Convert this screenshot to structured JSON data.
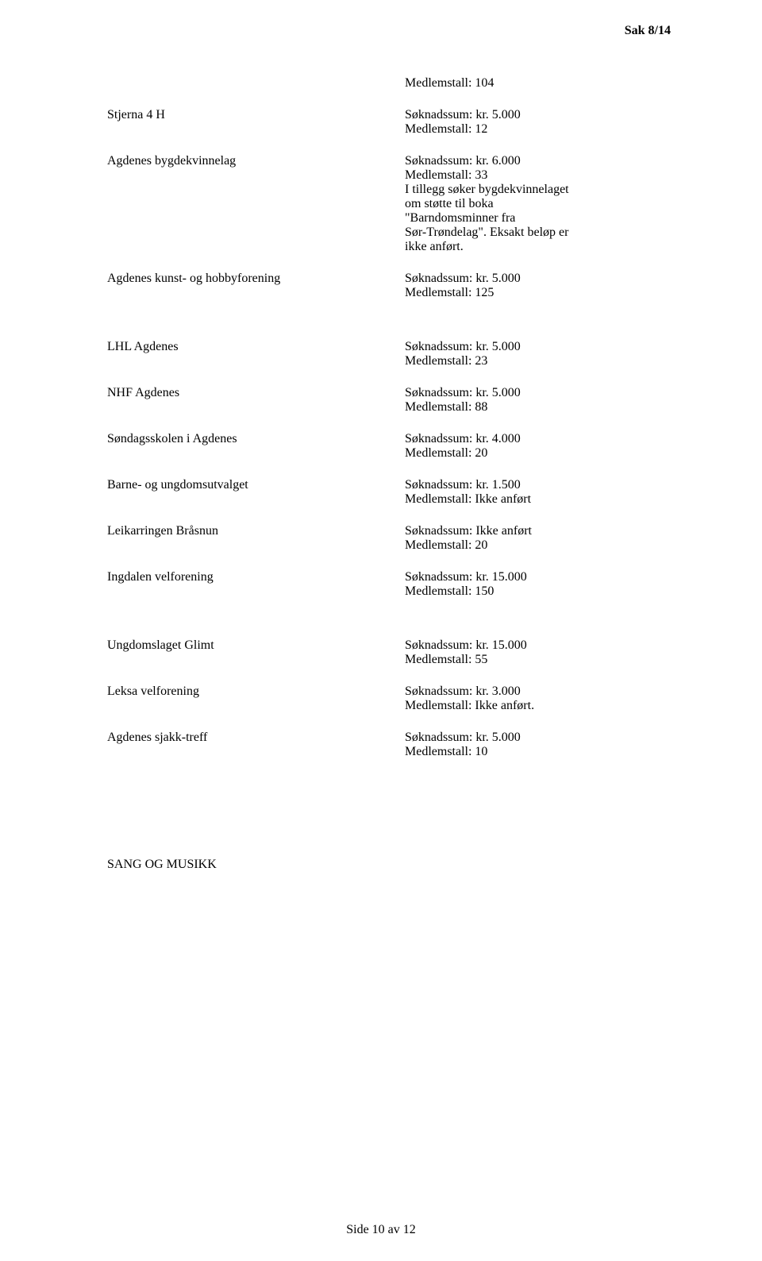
{
  "header": {
    "sak": "Sak 8/14"
  },
  "standalone": {
    "medlemstall_104": "Medlemstall: 104"
  },
  "entries": [
    {
      "name": "Stjerna 4 H",
      "lines": [
        "Søknadssum: kr. 5.000",
        "Medlemstall: 12"
      ]
    },
    {
      "name": "Agdenes bygdekvinnelag",
      "lines": [
        "Søknadssum: kr. 6.000",
        "Medlemstall: 33",
        "I tillegg søker bygdekvinnelaget",
        "om støtte til boka",
        "\"Barndomsminner fra",
        "Sør-Trøndelag\". Eksakt beløp er",
        "ikke anført."
      ]
    },
    {
      "name": "Agdenes kunst- og hobbyforening",
      "lines": [
        "Søknadssum: kr. 5.000",
        "Medlemstall: 125"
      ]
    }
  ],
  "entries2": [
    {
      "name": "LHL Agdenes",
      "lines": [
        "Søknadssum: kr. 5.000",
        "Medlemstall: 23"
      ]
    },
    {
      "name": "NHF Agdenes",
      "lines": [
        "Søknadssum: kr. 5.000",
        "Medlemstall: 88"
      ]
    },
    {
      "name": "Søndagsskolen i Agdenes",
      "lines": [
        "Søknadssum: kr. 4.000",
        "Medlemstall:  20"
      ]
    },
    {
      "name": "Barne- og ungdomsutvalget",
      "lines": [
        "Søknadssum: kr. 1.500",
        "Medlemstall: Ikke anført"
      ]
    },
    {
      "name": "Leikarringen Bråsnun",
      "lines": [
        "Søknadssum: Ikke anført",
        "Medlemstall: 20"
      ]
    },
    {
      "name": "Ingdalen velforening",
      "lines": [
        "Søknadssum: kr. 15.000",
        "Medlemstall: 150"
      ]
    }
  ],
  "entries3": [
    {
      "name": "Ungdomslaget Glimt",
      "lines": [
        "Søknadssum: kr. 15.000",
        "Medlemstall: 55"
      ]
    },
    {
      "name": "Leksa velforening",
      "lines": [
        "Søknadssum: kr. 3.000",
        "Medlemstall: Ikke anført."
      ]
    },
    {
      "name": "Agdenes sjakk-treff",
      "lines": [
        "Søknadssum: kr. 5.000",
        "Medlemstall: 10"
      ]
    }
  ],
  "section_heading": "SANG OG MUSIKK",
  "footer": "Side 10 av 12"
}
